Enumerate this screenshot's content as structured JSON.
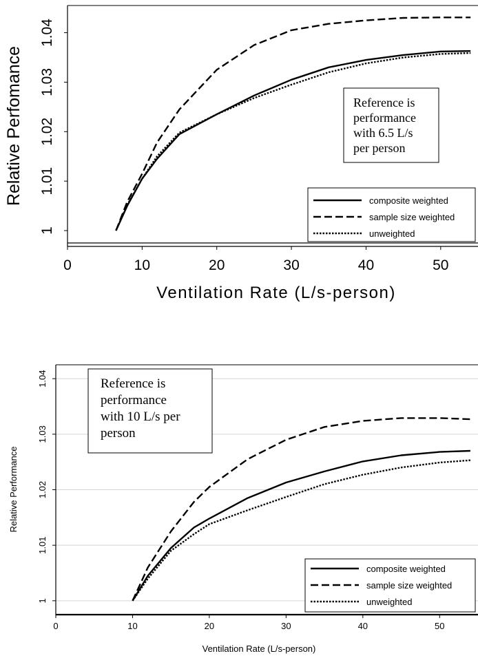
{
  "chart_data": [
    {
      "type": "line",
      "xlabel": "Ventilation Rate (L/s-person)",
      "ylabel": "Relative Perfomance",
      "xlim": [
        0,
        55
      ],
      "ylim": [
        0.9975,
        1.0455
      ],
      "xticks": [
        "0",
        "10",
        "20",
        "30",
        "40",
        "50"
      ],
      "yticks": [
        "1",
        "1.01",
        "1.02",
        "1.03",
        "1.04"
      ],
      "grid": false,
      "legend_position": "bottom-right",
      "annotation": [
        "Reference is",
        "performance",
        "with 6.5 L/s",
        "per person"
      ],
      "series": [
        {
          "name": "composite weighted",
          "style": "solid",
          "x": [
            6.5,
            8,
            10,
            12,
            15,
            20,
            25,
            30,
            35,
            40,
            45,
            50,
            54
          ],
          "y": [
            1.0,
            1.005,
            1.0105,
            1.0145,
            1.0195,
            1.0235,
            1.0273,
            1.0305,
            1.033,
            1.0345,
            1.0355,
            1.0362,
            1.0363
          ]
        },
        {
          "name": "sample size weighted",
          "style": "dashed",
          "x": [
            6.5,
            8,
            10,
            12,
            15,
            20,
            25,
            30,
            35,
            40,
            45,
            50,
            54
          ],
          "y": [
            1.0,
            1.0058,
            1.0115,
            1.0178,
            1.0245,
            1.0325,
            1.0375,
            1.0405,
            1.0418,
            1.0425,
            1.043,
            1.0431,
            1.0431
          ]
        },
        {
          "name": "unweighted",
          "style": "dotted",
          "x": [
            6.5,
            8,
            10,
            12,
            15,
            20,
            25,
            30,
            35,
            40,
            45,
            50,
            54
          ],
          "y": [
            1.0,
            1.0052,
            1.0105,
            1.015,
            1.0198,
            1.0235,
            1.0268,
            1.0295,
            1.032,
            1.0338,
            1.035,
            1.0357,
            1.0359
          ]
        }
      ]
    },
    {
      "type": "line",
      "xlabel": "Ventilation Rate (L/s-person)",
      "ylabel": "Relative Performance",
      "xlim": [
        0,
        55
      ],
      "ylim": [
        0.9975,
        1.0425
      ],
      "xticks": [
        "0",
        "10",
        "20",
        "30",
        "40",
        "50"
      ],
      "yticks": [
        "1",
        "1.01",
        "1.02",
        "1.03",
        "1.04"
      ],
      "grid": true,
      "legend_position": "bottom-right",
      "annotation": [
        "Reference is",
        "performance",
        "with 10 L/s per",
        "person"
      ],
      "series": [
        {
          "name": "composite weighted",
          "style": "solid",
          "x": [
            10,
            12,
            15,
            18,
            20,
            25,
            30,
            35,
            40,
            45,
            50,
            54
          ],
          "y": [
            1.0,
            1.0045,
            1.0095,
            1.0132,
            1.0148,
            1.0185,
            1.0213,
            1.0233,
            1.0251,
            1.0262,
            1.0268,
            1.027
          ]
        },
        {
          "name": "sample size weighted",
          "style": "dashed",
          "x": [
            10,
            12,
            15,
            18,
            20,
            25,
            30,
            35,
            40,
            45,
            50,
            54
          ],
          "y": [
            1.0,
            1.006,
            1.0125,
            1.0178,
            1.0205,
            1.0255,
            1.029,
            1.0313,
            1.0324,
            1.0329,
            1.0329,
            1.0327
          ]
        },
        {
          "name": "unweighted",
          "style": "dotted",
          "x": [
            10,
            12,
            15,
            18,
            20,
            25,
            30,
            35,
            40,
            45,
            50,
            54
          ],
          "y": [
            1.0,
            1.004,
            1.009,
            1.012,
            1.0138,
            1.0163,
            1.0187,
            1.021,
            1.0227,
            1.024,
            1.0249,
            1.0253
          ]
        }
      ]
    }
  ]
}
